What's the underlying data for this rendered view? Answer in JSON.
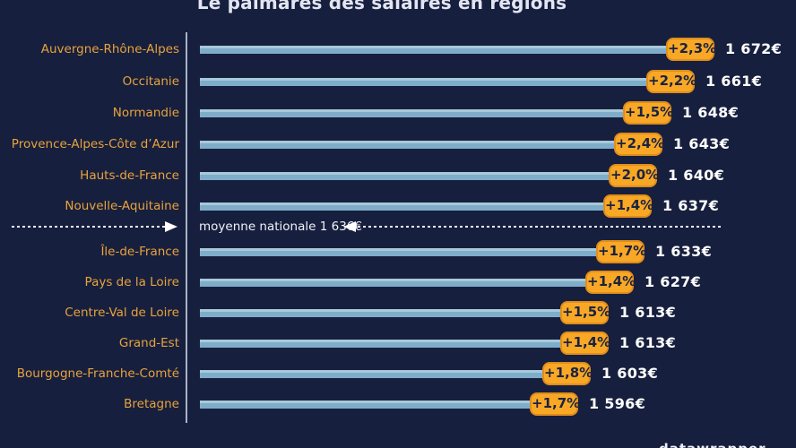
{
  "title": "Le palmarès des salaires en régions",
  "reference_line": {
    "label": "moyenne nationale 1 636€",
    "value": 1636
  },
  "footer_partial": "datawrapper",
  "colors": {
    "background": "#171f3e",
    "bar": "#7fadc9",
    "bar_highlight": "#a8c9da",
    "badge_background": "#f9a826",
    "badge_border": "#e08d1d",
    "badge_text": "#1b2240",
    "region_label": "#e7a33c",
    "value_text": "#ffffff",
    "axis_line": "#c2cedd",
    "dashed_line": "#ffffff"
  },
  "chart_data": {
    "type": "bar",
    "orientation": "horizontal",
    "title": "Le palmarès des salaires en régions",
    "categories": [
      "Auvergne-Rhône-Alpes",
      "Occitanie",
      "Normandie",
      "Provence-Alpes-Côte d’Azur",
      "Hauts-de-France",
      "Nouvelle-Aquitaine",
      "Île-de-France",
      "Pays de la Loire",
      "Centre-Val de Loire",
      "Grand-Est",
      "Bourgogne-Franche-Comté",
      "Bretagne"
    ],
    "series": [
      {
        "name": "value_eur",
        "values": [
          1672,
          1661,
          1648,
          1643,
          1640,
          1637,
          1633,
          1627,
          1613,
          1613,
          1603,
          1596
        ],
        "labels": [
          "1 672€",
          "1 661€",
          "1 648€",
          "1 643€",
          "1 640€",
          "1 637€",
          "1 633€",
          "1 627€",
          "1 613€",
          "1 613€",
          "1 603€",
          "1 596€"
        ]
      },
      {
        "name": "change_pct",
        "labels": [
          "+2,3%",
          "+2,2%",
          "+1,5%",
          "+2,4%",
          "+2,0%",
          "+1,4%",
          "+1,7%",
          "+1,4%",
          "+1,5%",
          "+1,4%",
          "+1,8%",
          "+1,7%"
        ]
      }
    ],
    "reference_line": {
      "label": "moyenne nationale 1 636€",
      "value": 1636,
      "after_category_index": 5
    },
    "xlim": [
      1410,
      1700
    ],
    "grid": false,
    "legend": false
  }
}
